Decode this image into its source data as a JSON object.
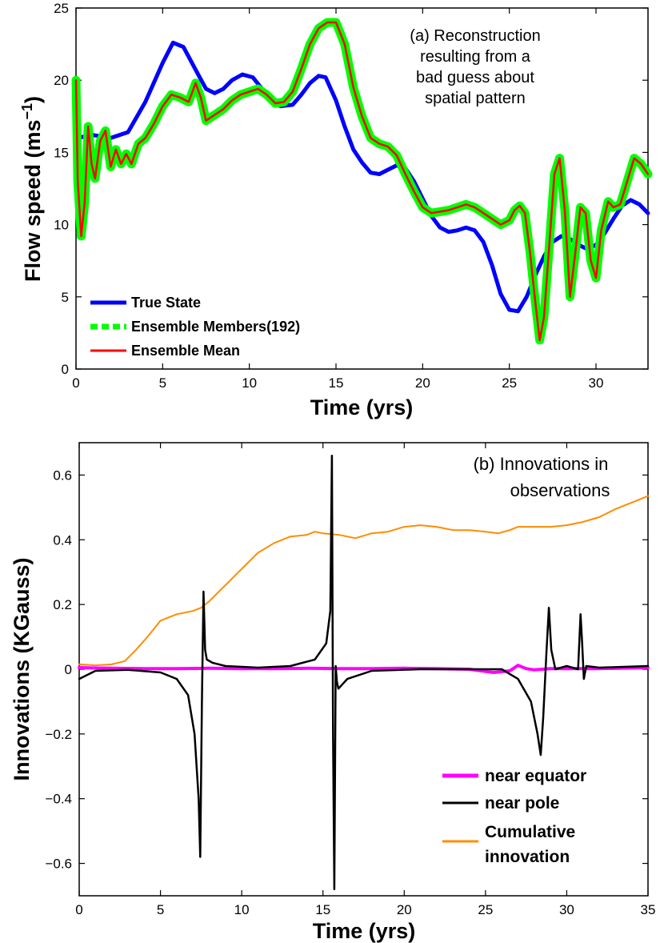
{
  "chart_data": [
    {
      "panel": "a",
      "type": "line",
      "annotation": [
        "(a) Reconstruction",
        "resulting from a",
        "bad guess about",
        "spatial pattern"
      ],
      "xlabel": "Time (yrs)",
      "ylabel_text": "Flow speed (ms",
      "ylabel_sup": "−1",
      "ylabel_close": ")",
      "xlim": [
        0,
        33
      ],
      "ylim": [
        0,
        25
      ],
      "xticks": [
        0,
        5,
        10,
        15,
        20,
        25,
        30
      ],
      "yticks": [
        0,
        5,
        10,
        15,
        20,
        25
      ],
      "legend_position": "lower-left",
      "series": [
        {
          "name": "True State",
          "color": "#0000ff",
          "x": [
            0,
            0.5,
            1,
            1.5,
            2,
            3,
            4,
            5,
            5.6,
            6.2,
            7,
            7.5,
            8,
            8.5,
            9,
            9.6,
            10.2,
            11,
            11.8,
            12.5,
            13,
            13.5,
            14,
            14.4,
            15,
            15.5,
            16,
            16.5,
            17,
            17.5,
            18,
            18.5,
            19,
            19.5,
            20,
            20.5,
            21,
            21.5,
            22,
            22.5,
            23,
            23.5,
            24,
            24.5,
            25,
            25.5,
            26,
            26.5,
            27,
            27.5,
            28,
            28.5,
            29,
            29.5,
            30,
            30.5,
            31,
            31.5,
            32,
            32.5,
            33
          ],
          "values": [
            16.0,
            16.1,
            16.2,
            16.1,
            16.0,
            16.4,
            18.5,
            21.2,
            22.6,
            22.3,
            20.5,
            19.4,
            19.1,
            19.4,
            20.0,
            20.4,
            20.2,
            19.0,
            18.2,
            18.3,
            19.0,
            19.8,
            20.3,
            20.2,
            18.6,
            16.8,
            15.2,
            14.3,
            13.6,
            13.5,
            13.8,
            14.1,
            13.9,
            13.0,
            11.8,
            10.6,
            9.8,
            9.5,
            9.6,
            9.8,
            9.6,
            8.8,
            7.2,
            5.2,
            4.1,
            4.0,
            5.0,
            6.5,
            7.8,
            8.8,
            9.2,
            9.0,
            8.6,
            8.3,
            8.6,
            9.4,
            10.4,
            11.3,
            11.7,
            11.4,
            10.8
          ]
        },
        {
          "name": "Ensemble Members(192)",
          "color": "#00ff00",
          "x": [
            0,
            0.1,
            0.3,
            0.5,
            0.7,
            0.9,
            1.1,
            1.4,
            1.7,
            2.0,
            2.3,
            2.6,
            2.9,
            3.2,
            3.6,
            4.0,
            4.5,
            5.0,
            5.5,
            6.0,
            6.5,
            6.9,
            7.2,
            7.5,
            8.0,
            8.5,
            9.0,
            9.5,
            10.0,
            10.5,
            11.0,
            11.5,
            12.0,
            12.5,
            13.0,
            13.5,
            14.0,
            14.5,
            15.0,
            15.5,
            16.0,
            16.5,
            17.0,
            17.5,
            18.0,
            18.5,
            19.0,
            19.5,
            20.0,
            20.5,
            21.0,
            21.5,
            22.0,
            22.5,
            23.0,
            23.5,
            24.0,
            24.5,
            25.0,
            25.3,
            25.6,
            25.9,
            26.2,
            26.5,
            26.75,
            27.0,
            27.3,
            27.6,
            27.9,
            28.2,
            28.5,
            28.8,
            29.1,
            29.4,
            29.7,
            30.0,
            30.3,
            30.7,
            31.0,
            31.4,
            31.8,
            32.2,
            32.6,
            33.0
          ],
          "values": [
            20.0,
            13.0,
            9.2,
            11.5,
            16.8,
            14.2,
            13.2,
            15.8,
            16.5,
            14.0,
            15.2,
            14.2,
            14.9,
            14.2,
            15.6,
            16.0,
            17.0,
            18.2,
            19.0,
            18.8,
            18.5,
            19.8,
            18.8,
            17.2,
            17.6,
            18.0,
            18.6,
            19.0,
            19.2,
            19.4,
            19.0,
            18.4,
            18.5,
            19.2,
            20.8,
            22.5,
            23.6,
            24.0,
            24.0,
            22.5,
            19.5,
            17.5,
            16.0,
            15.6,
            15.4,
            14.8,
            13.5,
            12.3,
            11.2,
            10.8,
            10.9,
            11.0,
            11.2,
            11.4,
            11.2,
            10.8,
            10.4,
            10.0,
            10.3,
            11.0,
            11.3,
            10.8,
            8.0,
            4.6,
            2.0,
            3.6,
            8.5,
            13.5,
            14.6,
            11.0,
            5.0,
            8.0,
            11.2,
            10.8,
            7.5,
            6.3,
            9.6,
            11.6,
            11.2,
            11.4,
            13.0,
            14.6,
            14.2,
            13.5
          ]
        },
        {
          "name": "Ensemble Mean",
          "color": "#ff0000",
          "x": [
            0,
            0.1,
            0.3,
            0.5,
            0.7,
            0.9,
            1.1,
            1.4,
            1.7,
            2.0,
            2.3,
            2.6,
            2.9,
            3.2,
            3.6,
            4.0,
            4.5,
            5.0,
            5.5,
            6.0,
            6.5,
            6.9,
            7.2,
            7.5,
            8.0,
            8.5,
            9.0,
            9.5,
            10.0,
            10.5,
            11.0,
            11.5,
            12.0,
            12.5,
            13.0,
            13.5,
            14.0,
            14.5,
            15.0,
            15.5,
            16.0,
            16.5,
            17.0,
            17.5,
            18.0,
            18.5,
            19.0,
            19.5,
            20.0,
            20.5,
            21.0,
            21.5,
            22.0,
            22.5,
            23.0,
            23.5,
            24.0,
            24.5,
            25.0,
            25.3,
            25.6,
            25.9,
            26.2,
            26.5,
            26.75,
            27.0,
            27.3,
            27.6,
            27.9,
            28.2,
            28.5,
            28.8,
            29.1,
            29.4,
            29.7,
            30.0,
            30.3,
            30.7,
            31.0,
            31.4,
            31.8,
            32.2,
            32.6,
            33.0
          ],
          "values": [
            20.0,
            13.0,
            9.2,
            11.5,
            16.8,
            14.2,
            13.2,
            15.8,
            16.5,
            14.0,
            15.2,
            14.2,
            14.9,
            14.2,
            15.6,
            16.0,
            17.0,
            18.2,
            19.0,
            18.8,
            18.5,
            19.8,
            18.8,
            17.2,
            17.6,
            18.0,
            18.6,
            19.0,
            19.2,
            19.4,
            19.0,
            18.4,
            18.5,
            19.2,
            20.8,
            22.5,
            23.6,
            24.0,
            24.0,
            22.5,
            19.5,
            17.5,
            16.0,
            15.6,
            15.4,
            14.8,
            13.5,
            12.3,
            11.2,
            10.8,
            10.9,
            11.0,
            11.2,
            11.4,
            11.2,
            10.8,
            10.4,
            10.0,
            10.3,
            11.0,
            11.3,
            10.8,
            8.0,
            4.6,
            2.0,
            3.6,
            8.5,
            13.5,
            14.6,
            11.0,
            5.0,
            8.0,
            11.2,
            10.8,
            7.5,
            6.3,
            9.6,
            11.6,
            11.2,
            11.4,
            13.0,
            14.6,
            14.2,
            13.5
          ]
        }
      ]
    },
    {
      "panel": "b",
      "type": "line",
      "annotation": [
        "(b) Innovations in",
        "observations"
      ],
      "xlabel": "Time (yrs)",
      "ylabel": "Innovations (KGauss)",
      "xlim": [
        0,
        35
      ],
      "ylim": [
        -0.7,
        0.7
      ],
      "xticks": [
        0,
        5,
        10,
        15,
        20,
        25,
        30,
        35
      ],
      "yticks": [
        -0.6,
        -0.4,
        -0.2,
        0,
        0.2,
        0.4,
        0.6
      ],
      "ytick_labels": [
        "−0.6",
        "−0.4",
        "−0.2",
        "0",
        "0.2",
        "0.4",
        "0.6"
      ],
      "legend_position": "lower-right",
      "series": [
        {
          "name": "near equator",
          "legend_lines": [
            "near equator"
          ],
          "color": "#ff00ff",
          "x": [
            0,
            2,
            4,
            6,
            8,
            10,
            12,
            14,
            16,
            18,
            20,
            22,
            24,
            25.5,
            26.5,
            27,
            27.5,
            28,
            29,
            30,
            32,
            35
          ],
          "values": [
            0.005,
            0.003,
            0.002,
            0.002,
            0.003,
            0.002,
            0.002,
            0.003,
            0.002,
            0.002,
            0.003,
            0.002,
            0.0,
            -0.01,
            -0.005,
            0.012,
            0.002,
            -0.002,
            0.002,
            0.002,
            0.002,
            0.005
          ]
        },
        {
          "name": "near pole",
          "legend_lines": [
            "near pole"
          ],
          "color": "#000000",
          "x": [
            0,
            1,
            3,
            5,
            6,
            6.7,
            7.1,
            7.35,
            7.45,
            7.55,
            7.65,
            7.75,
            7.85,
            8.2,
            9,
            11,
            13,
            14.5,
            15.2,
            15.45,
            15.55,
            15.62,
            15.7,
            15.78,
            15.86,
            15.95,
            16.5,
            18,
            21,
            24,
            26,
            27,
            27.8,
            28.2,
            28.4,
            28.55,
            28.75,
            28.9,
            29.05,
            29.3,
            30,
            30.7,
            30.85,
            30.95,
            31.05,
            31.2,
            32,
            35
          ],
          "values": [
            -0.03,
            -0.005,
            -0.002,
            -0.01,
            -0.03,
            -0.08,
            -0.2,
            -0.4,
            -0.58,
            -0.1,
            0.24,
            0.06,
            0.03,
            0.02,
            0.01,
            0.005,
            0.01,
            0.03,
            0.08,
            0.18,
            0.66,
            -0.2,
            -0.68,
            0.01,
            -0.04,
            -0.06,
            -0.03,
            -0.005,
            0.0,
            0.0,
            0.0,
            -0.03,
            -0.1,
            -0.2,
            -0.265,
            -0.15,
            0.05,
            0.19,
            0.06,
            0.0,
            0.01,
            0.0,
            0.17,
            0.08,
            -0.03,
            0.01,
            0.005,
            0.01
          ]
        },
        {
          "name": "Cumulative innovation",
          "legend_lines": [
            "Cumulative",
            "innovation"
          ],
          "color": "#ff8c00",
          "x": [
            0,
            1,
            2,
            2.8,
            3.5,
            4.2,
            5,
            5.5,
            6,
            7,
            7.5,
            8,
            9,
            10,
            11,
            12,
            13,
            14,
            14.5,
            15,
            16,
            17,
            18,
            19,
            20,
            21,
            22,
            23,
            24,
            25,
            25.8,
            26.5,
            27,
            28,
            29,
            30,
            31,
            32,
            33,
            34,
            35
          ],
          "values": [
            0.015,
            0.012,
            0.015,
            0.025,
            0.06,
            0.1,
            0.15,
            0.16,
            0.17,
            0.18,
            0.19,
            0.21,
            0.26,
            0.31,
            0.36,
            0.39,
            0.41,
            0.415,
            0.425,
            0.42,
            0.415,
            0.405,
            0.42,
            0.425,
            0.44,
            0.445,
            0.44,
            0.43,
            0.43,
            0.425,
            0.42,
            0.43,
            0.44,
            0.44,
            0.44,
            0.445,
            0.455,
            0.47,
            0.495,
            0.515,
            0.535
          ]
        }
      ]
    }
  ]
}
